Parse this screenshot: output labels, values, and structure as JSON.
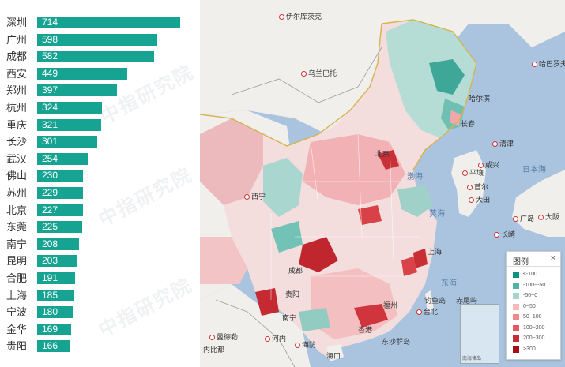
{
  "ranking": [
    {
      "city": "深圳",
      "value": 714
    },
    {
      "city": "广州",
      "value": 598
    },
    {
      "city": "成都",
      "value": 582
    },
    {
      "city": "西安",
      "value": 449
    },
    {
      "city": "郑州",
      "value": 397
    },
    {
      "city": "杭州",
      "value": 324
    },
    {
      "city": "重庆",
      "value": 321
    },
    {
      "city": "长沙",
      "value": 301
    },
    {
      "city": "武汉",
      "value": 254
    },
    {
      "city": "佛山",
      "value": 230
    },
    {
      "city": "苏州",
      "value": 229
    },
    {
      "city": "北京",
      "value": 227
    },
    {
      "city": "东莞",
      "value": 225
    },
    {
      "city": "南宁",
      "value": 208
    },
    {
      "city": "昆明",
      "value": 203
    },
    {
      "city": "合肥",
      "value": 191
    },
    {
      "city": "上海",
      "value": 185
    },
    {
      "city": "宁波",
      "value": 180
    },
    {
      "city": "金华",
      "value": 169
    },
    {
      "city": "贵阳",
      "value": 166
    }
  ],
  "ranking_max": 714,
  "watermark": "中指研究院",
  "bar_color": "#16a392",
  "map": {
    "labels": {
      "irkutsk": "伊尔库茨克",
      "ulaanbaatar": "乌兰巴托",
      "harbin": "哈尔滨",
      "khabarovsk": "哈巴罗夫斯克",
      "changchun": "长春",
      "beijing": "北京",
      "qingjin": "清津",
      "xianning": "咸兴",
      "pyongyang": "平壤",
      "sea_of_japan": "日本海",
      "yellow_sea": "黄海",
      "bohai": "渤海",
      "xining": "西宁",
      "seoul": "首尔",
      "daejeon": "大田",
      "hiroshima": "广岛",
      "osaka": "大阪",
      "nagasaki": "长崎",
      "shanghai": "上海",
      "east_sea": "东海",
      "taipei": "台北",
      "guiyang": "贵阳",
      "diaoyu": "钓鱼岛",
      "chiwei": "赤尾屿",
      "nanning": "南宁",
      "hanoi": "河内",
      "haiphong": "海防",
      "haikou": "海口",
      "mandalay": "曼德勒",
      "naypyidaw": "内比都",
      "dongsha": "东沙群岛",
      "chengdu": "成都",
      "fuzhou": "福州",
      "xianggang": "香港"
    },
    "legend": {
      "title": "图例",
      "close": "×",
      "items": [
        {
          "label": "≤-100",
          "color": "#0e9283"
        },
        {
          "label": "-100~-50",
          "color": "#4fb3a6"
        },
        {
          "label": "-50~0",
          "color": "#a4d4cc"
        },
        {
          "label": "0~50",
          "color": "#f6b8ba"
        },
        {
          "label": "50~100",
          "color": "#ee8a8e"
        },
        {
          "label": "100~200",
          "color": "#e25a60"
        },
        {
          "label": "200~300",
          "color": "#c62d35"
        },
        {
          "label": ">300",
          "color": "#a40f16"
        }
      ]
    },
    "inset_label": "南海诸岛"
  }
}
